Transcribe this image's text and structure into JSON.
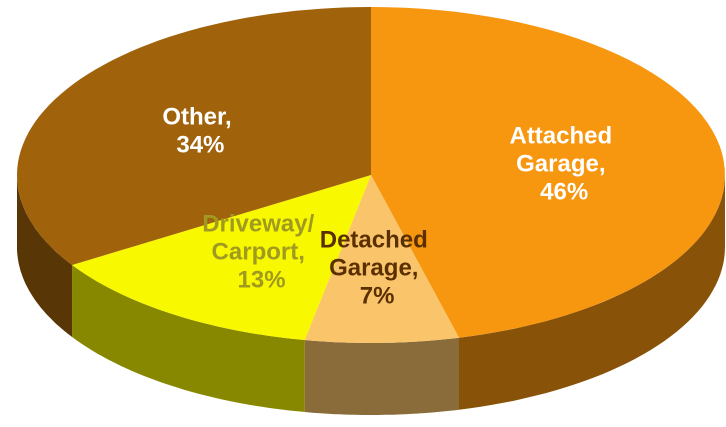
{
  "chart_data": {
    "type": "pie",
    "values": [
      46,
      7,
      13,
      34
    ],
    "value_labels": [
      "Attached Garage, 46%",
      "Detached Garage, 7%",
      "Driveway/ Carport, 13%",
      "Other, 34%"
    ],
    "colors": [
      "#f7960f",
      "#fac46a",
      "#f8f800",
      "#a0620a"
    ],
    "label_colors": [
      "#ffffff",
      "#5a3000",
      "#a09a20",
      "#ffffff"
    ]
  }
}
